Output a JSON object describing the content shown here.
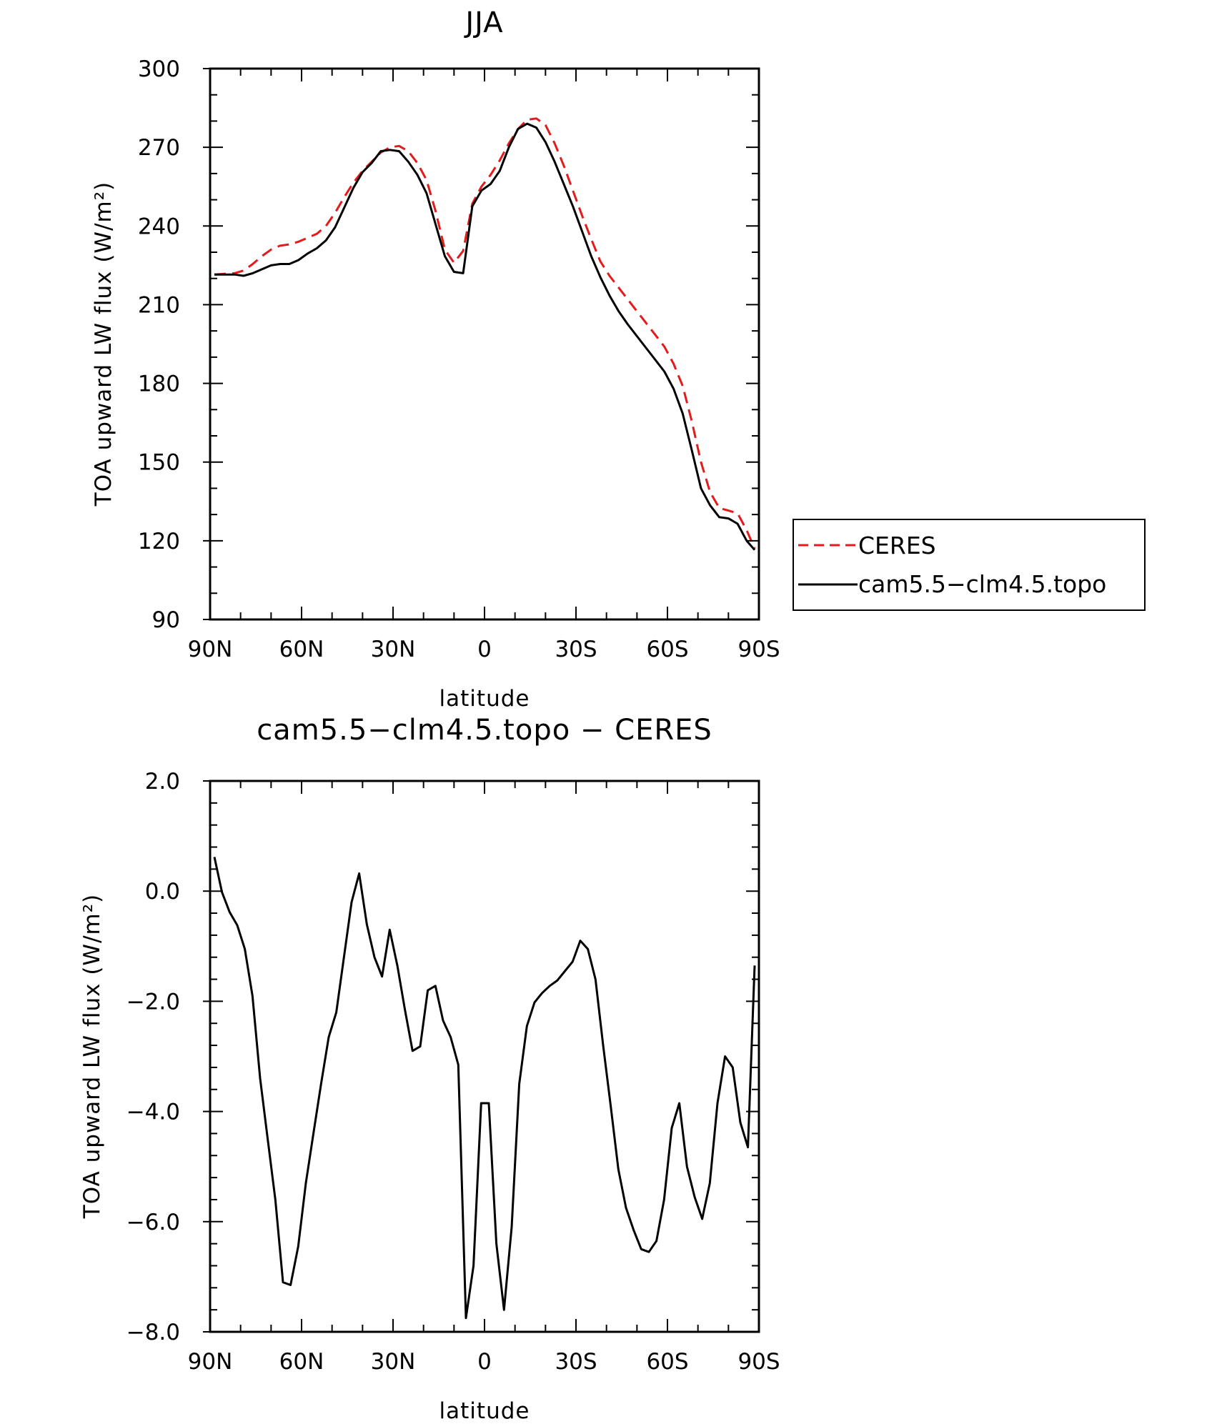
{
  "chart_data": [
    {
      "type": "line",
      "title": "JJA",
      "xlabel": "latitude",
      "ylabel": "TOA upward LW flux (W/m²)",
      "xlim": [
        90,
        -90
      ],
      "ylim": [
        90,
        300
      ],
      "x_ticks": [
        {
          "value": 90,
          "label": "90N"
        },
        {
          "value": 60,
          "label": "60N"
        },
        {
          "value": 30,
          "label": "30N"
        },
        {
          "value": 0,
          "label": "0"
        },
        {
          "value": -30,
          "label": "30S"
        },
        {
          "value": -60,
          "label": "60S"
        },
        {
          "value": -90,
          "label": "90S"
        }
      ],
      "y_ticks": [
        {
          "value": 90,
          "label": "90"
        },
        {
          "value": 120,
          "label": "120"
        },
        {
          "value": 150,
          "label": "150"
        },
        {
          "value": 180,
          "label": "180"
        },
        {
          "value": 210,
          "label": "210"
        },
        {
          "value": 240,
          "label": "240"
        },
        {
          "value": 270,
          "label": "270"
        },
        {
          "value": 300,
          "label": "300"
        }
      ],
      "grid": false,
      "legend_position": "right",
      "series": [
        {
          "name": "CERES",
          "color": "#e41a1c",
          "style": "dashed",
          "x": [
            88.6,
            85,
            82,
            79,
            76,
            73,
            70,
            67,
            64,
            61,
            58,
            55,
            52,
            49,
            46,
            43,
            40,
            37,
            34,
            31,
            28,
            25,
            22,
            19,
            16,
            13,
            10,
            7,
            4,
            1,
            -2,
            -5,
            -8,
            -11,
            -14,
            -17,
            -20,
            -23,
            -26,
            -29,
            -32,
            -35,
            -38,
            -41,
            -44,
            -47,
            -50,
            -53,
            -56,
            -59,
            -62,
            -65,
            -68,
            -71,
            -74,
            -77,
            -80,
            -83,
            -86,
            -88.6
          ],
          "y": [
            221.5,
            221.8,
            222,
            223,
            225.5,
            228.5,
            231,
            232.5,
            233,
            234,
            235.5,
            237,
            240,
            245,
            251,
            256.5,
            261,
            264.5,
            268,
            270,
            270.5,
            268.5,
            264,
            257.5,
            245.5,
            231,
            226,
            230.5,
            248.5,
            255,
            259.5,
            265,
            271.5,
            277,
            280.5,
            281,
            278.5,
            271.5,
            263,
            253.5,
            244,
            235,
            226.5,
            221,
            216.5,
            212,
            207.5,
            203,
            198.5,
            194,
            187.5,
            179,
            165.5,
            150,
            138.5,
            132.5,
            131.5,
            130.5,
            124,
            117
          ]
        },
        {
          "name": "cam5.5−clm4.5.topo",
          "color": "#000000",
          "style": "solid",
          "x": [
            88.6,
            85,
            82,
            79,
            76,
            73,
            70,
            67,
            64,
            61,
            58,
            55,
            52,
            49,
            46,
            43,
            40,
            37,
            34,
            31,
            28,
            25,
            22,
            19,
            16,
            13,
            10,
            7,
            4,
            1,
            -2,
            -5,
            -8,
            -11,
            -14,
            -17,
            -20,
            -23,
            -26,
            -29,
            -32,
            -35,
            -38,
            -41,
            -44,
            -47,
            -50,
            -53,
            -56,
            -59,
            -62,
            -65,
            -68,
            -71,
            -74,
            -77,
            -80,
            -83,
            -86,
            -88.6
          ],
          "y": [
            221.5,
            221.5,
            221.5,
            221,
            222,
            223.5,
            225,
            225.5,
            225.5,
            227,
            229.5,
            231.5,
            234.5,
            239.5,
            247,
            254.5,
            260.5,
            264,
            268.5,
            269,
            268.5,
            264.5,
            259.5,
            252.5,
            240.5,
            228.5,
            222.5,
            222,
            247.5,
            253.5,
            256,
            261,
            270,
            277,
            279,
            277.5,
            272,
            264.5,
            256,
            247.5,
            238,
            228.5,
            220.5,
            213.5,
            207.5,
            202.5,
            198,
            193.5,
            189,
            184.5,
            178,
            168.5,
            154.5,
            140,
            133.5,
            129,
            128.5,
            126.5,
            120,
            116.5
          ]
        }
      ]
    },
    {
      "type": "line",
      "title": "cam5.5−clm4.5.topo − CERES",
      "xlabel": "latitude",
      "ylabel": "TOA upward LW flux (W/m²)",
      "xlim": [
        90,
        -90
      ],
      "ylim": [
        -8.0,
        2.0
      ],
      "x_ticks": [
        {
          "value": 90,
          "label": "90N"
        },
        {
          "value": 60,
          "label": "60N"
        },
        {
          "value": 30,
          "label": "30N"
        },
        {
          "value": 0,
          "label": "0"
        },
        {
          "value": -30,
          "label": "30S"
        },
        {
          "value": -60,
          "label": "60S"
        },
        {
          "value": -90,
          "label": "90S"
        }
      ],
      "y_ticks": [
        {
          "value": -8.0,
          "label": "−8.0"
        },
        {
          "value": -6.0,
          "label": "−6.0"
        },
        {
          "value": -4.0,
          "label": "−4.0"
        },
        {
          "value": -2.0,
          "label": "−2.0"
        },
        {
          "value": 0.0,
          "label": "0.0"
        },
        {
          "value": 2.0,
          "label": "2.0"
        }
      ],
      "grid": false,
      "series": [
        {
          "color": "#000000",
          "style": "solid",
          "x": [
            88.6,
            86.1,
            83.6,
            81.1,
            78.6,
            76.1,
            73.6,
            71.1,
            68.6,
            66.1,
            63.6,
            61.1,
            58.6,
            56.1,
            53.6,
            51.1,
            48.6,
            46.1,
            43.6,
            41.1,
            38.6,
            36.1,
            33.6,
            31.1,
            28.6,
            26.1,
            23.6,
            21.1,
            18.6,
            16.1,
            13.6,
            11.1,
            8.6,
            6.1,
            3.6,
            1.1,
            -1.4,
            -3.9,
            -6.4,
            -8.9,
            -11.4,
            -13.9,
            -16.4,
            -18.9,
            -21.4,
            -23.9,
            -26.4,
            -28.9,
            -31.4,
            -33.9,
            -36.4,
            -38.9,
            -41.4,
            -43.9,
            -46.4,
            -48.9,
            -51.4,
            -53.9,
            -56.4,
            -58.9,
            -61.4,
            -63.9,
            -66.4,
            -68.9,
            -71.4,
            -73.9,
            -76.4,
            -78.9,
            -81.4,
            -83.9,
            -86.4,
            -88.6
          ],
          "y": [
            0.62,
            -0.02,
            -0.38,
            -0.62,
            -1.05,
            -1.9,
            -3.4,
            -4.5,
            -5.6,
            -7.1,
            -7.15,
            -6.45,
            -5.3,
            -4.4,
            -3.5,
            -2.65,
            -2.2,
            -1.2,
            -0.2,
            0.32,
            -0.6,
            -1.2,
            -1.55,
            -0.7,
            -1.35,
            -2.15,
            -2.9,
            -2.82,
            -1.8,
            -1.72,
            -2.35,
            -2.65,
            -3.15,
            -7.75,
            -6.8,
            -3.85,
            -3.85,
            -6.4,
            -7.6,
            -6.1,
            -3.5,
            -2.45,
            -2.02,
            -1.85,
            -1.72,
            -1.62,
            -1.45,
            -1.28,
            -0.9,
            -1.05,
            -1.6,
            -2.8,
            -3.9,
            -5.05,
            -5.75,
            -6.15,
            -6.5,
            -6.55,
            -6.35,
            -5.6,
            -4.3,
            -3.85,
            -5.0,
            -5.55,
            -5.95,
            -5.3,
            -3.85,
            -3.0,
            -3.2,
            -4.2,
            -4.65,
            -1.35
          ]
        }
      ]
    }
  ]
}
